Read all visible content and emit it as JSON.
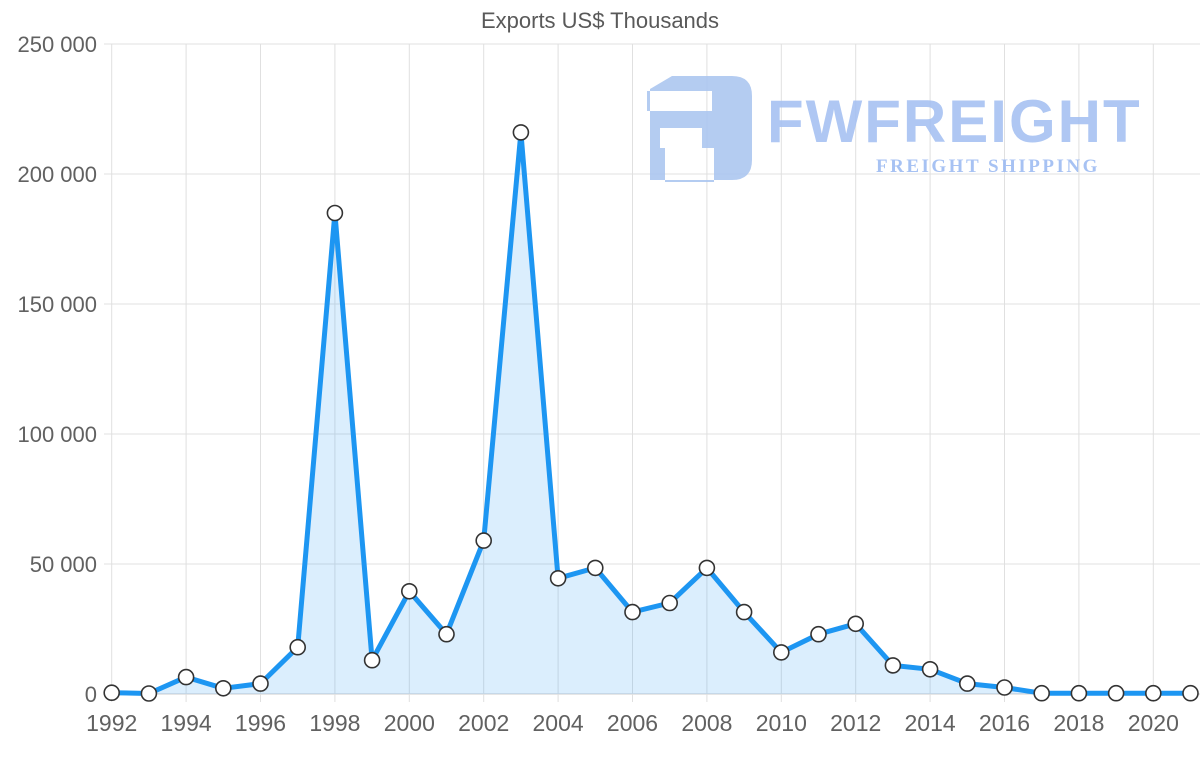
{
  "page": {
    "background": "#ffffff"
  },
  "chart_data": {
    "type": "line",
    "title": "Exports US$ Thousands",
    "x": [
      1992,
      1993,
      1994,
      1995,
      1996,
      1997,
      1998,
      1999,
      2000,
      2001,
      2002,
      2003,
      2004,
      2005,
      2006,
      2007,
      2008,
      2009,
      2010,
      2011,
      2012,
      2013,
      2014,
      2015,
      2016,
      2017,
      2018,
      2019,
      2020,
      2021
    ],
    "series": [
      {
        "name": "Exports US$ Thousands",
        "values": [
          500,
          200,
          6500,
          2200,
          4000,
          18000,
          185000,
          13000,
          39500,
          23000,
          59000,
          216000,
          44500,
          48500,
          31500,
          35000,
          48500,
          31500,
          16000,
          23000,
          27000,
          11000,
          9500,
          4000,
          2500,
          300,
          300,
          300,
          300,
          300
        ]
      }
    ],
    "xlabel": "",
    "ylabel": "",
    "ylim": [
      0,
      250000
    ],
    "xlim": [
      1992,
      2021
    ],
    "grid": true,
    "legend": false,
    "x_tick_labels": [
      "1992",
      "1994",
      "1996",
      "1998",
      "2000",
      "2002",
      "2004",
      "2006",
      "2008",
      "2010",
      "2012",
      "2014",
      "2016",
      "2018",
      "2020"
    ],
    "y_tick_values": [
      0,
      50000,
      100000,
      150000,
      200000,
      250000
    ],
    "y_tick_labels": [
      "0",
      "50 000",
      "100 000",
      "150 000",
      "200 000",
      "250 000"
    ],
    "colors": {
      "line": "#1d96f2",
      "area": "rgba(30,150,242,0.16)",
      "marker_fill": "#ffffff",
      "marker_stroke": "#333333",
      "grid": "#e0e0e0",
      "axis": "#cccccc",
      "tick_text": "#616161",
      "title_text": "#595959"
    }
  },
  "logo": {
    "brand": "FWFREIGHT",
    "tagline": "FREIGHT SHIPPING",
    "icon": "fwfreight-logo-icon",
    "color": "#a4c0f2"
  }
}
